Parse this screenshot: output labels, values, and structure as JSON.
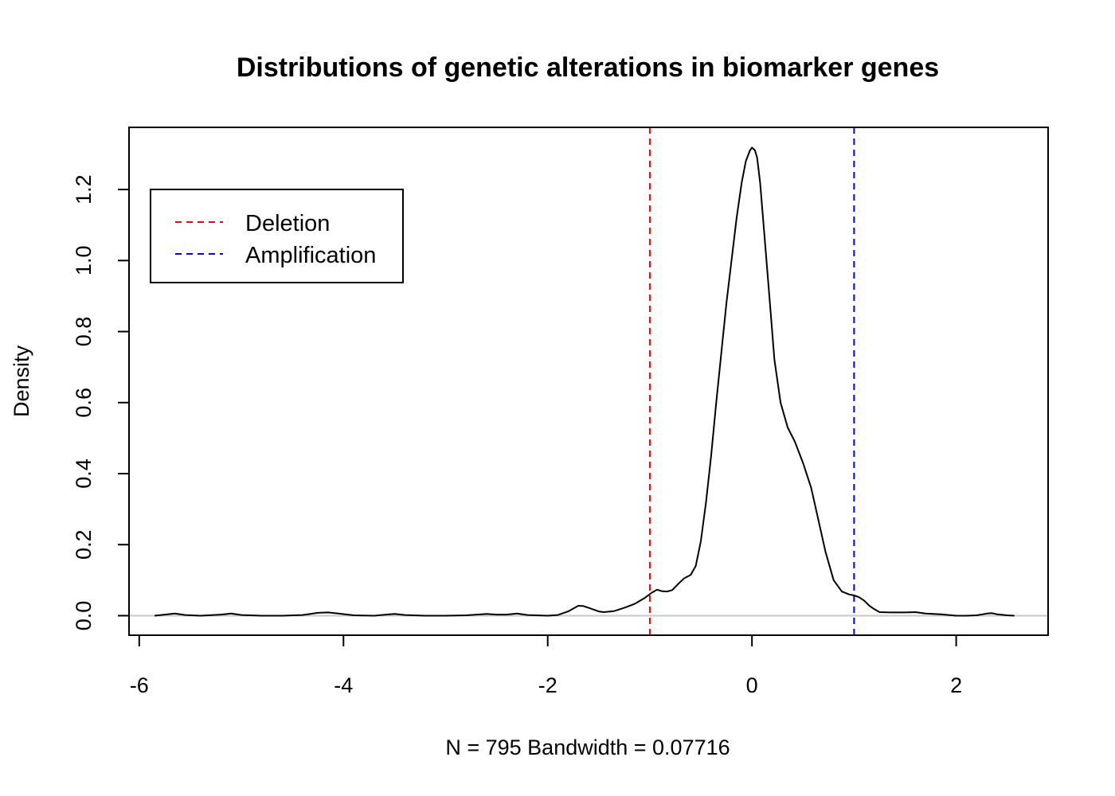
{
  "chart_data": {
    "type": "line",
    "title": "Distributions of genetic alterations in biomarker genes",
    "xlabel": "N = 795   Bandwidth = 0.07716",
    "ylabel": "Density",
    "xlim": [
      -6.1,
      2.9
    ],
    "ylim": [
      -0.055,
      1.375
    ],
    "x_ticks": [
      -6,
      -4,
      -2,
      0,
      2
    ],
    "x_tick_labels": [
      "-6",
      "-4",
      "-2",
      "0",
      "2"
    ],
    "y_ticks": [
      0.0,
      0.2,
      0.4,
      0.6,
      0.8,
      1.0,
      1.2
    ],
    "y_tick_labels": [
      "0.0",
      "0.2",
      "0.4",
      "0.6",
      "0.8",
      "1.0",
      "1.2"
    ],
    "grid": false,
    "legend_position": "top-left",
    "series": [
      {
        "color": "#000000",
        "x": [
          -5.85,
          -5.75,
          -5.65,
          -5.55,
          -5.4,
          -5.2,
          -5.1,
          -5.0,
          -4.8,
          -4.6,
          -4.4,
          -4.25,
          -4.15,
          -4.05,
          -3.9,
          -3.7,
          -3.55,
          -3.5,
          -3.4,
          -3.2,
          -3.0,
          -2.8,
          -2.65,
          -2.6,
          -2.5,
          -2.4,
          -2.3,
          -2.2,
          -2.0,
          -1.9,
          -1.8,
          -1.7,
          -1.65,
          -1.6,
          -1.5,
          -1.45,
          -1.35,
          -1.25,
          -1.15,
          -1.05,
          -0.98,
          -0.93,
          -0.88,
          -0.83,
          -0.78,
          -0.72,
          -0.66,
          -0.6,
          -0.55,
          -0.5,
          -0.45,
          -0.4,
          -0.35,
          -0.3,
          -0.25,
          -0.2,
          -0.15,
          -0.1,
          -0.06,
          -0.02,
          0.0,
          0.03,
          0.05,
          0.08,
          0.12,
          0.17,
          0.22,
          0.28,
          0.35,
          0.42,
          0.5,
          0.58,
          0.65,
          0.72,
          0.8,
          0.88,
          0.95,
          1.0,
          1.05,
          1.1,
          1.15,
          1.2,
          1.25,
          1.35,
          1.5,
          1.6,
          1.7,
          1.85,
          2.0,
          2.1,
          2.2,
          2.3,
          2.35,
          2.4,
          2.5,
          2.57
        ],
        "y": [
          0.0,
          0.003,
          0.006,
          0.002,
          0.0,
          0.003,
          0.006,
          0.002,
          0.0,
          0.0,
          0.002,
          0.008,
          0.009,
          0.006,
          0.001,
          0.0,
          0.004,
          0.005,
          0.002,
          0.0,
          0.0,
          0.001,
          0.004,
          0.005,
          0.003,
          0.003,
          0.006,
          0.002,
          0.0,
          0.002,
          0.012,
          0.028,
          0.027,
          0.022,
          0.012,
          0.01,
          0.013,
          0.022,
          0.033,
          0.05,
          0.065,
          0.073,
          0.069,
          0.068,
          0.072,
          0.09,
          0.106,
          0.115,
          0.14,
          0.21,
          0.32,
          0.45,
          0.6,
          0.74,
          0.88,
          1.0,
          1.12,
          1.22,
          1.28,
          1.31,
          1.318,
          1.31,
          1.29,
          1.22,
          1.08,
          0.9,
          0.72,
          0.6,
          0.53,
          0.49,
          0.43,
          0.36,
          0.27,
          0.18,
          0.1,
          0.068,
          0.06,
          0.057,
          0.052,
          0.042,
          0.028,
          0.018,
          0.01,
          0.009,
          0.009,
          0.01,
          0.006,
          0.004,
          0.0,
          0.0,
          0.001,
          0.006,
          0.007,
          0.004,
          0.001,
          0.0
        ]
      }
    ],
    "baseline": {
      "y": 0,
      "color": "#c8c8c8"
    },
    "vlines": [
      {
        "name": "Deletion",
        "x": -1,
        "color": "#ff0000",
        "dash": "dashed"
      },
      {
        "name": "Amplification",
        "x": 1,
        "color": "#0000ff",
        "dash": "dashed"
      }
    ],
    "legend": [
      {
        "label": "Deletion",
        "color": "#ff0000"
      },
      {
        "label": "Amplification",
        "color": "#0000ff"
      }
    ]
  }
}
